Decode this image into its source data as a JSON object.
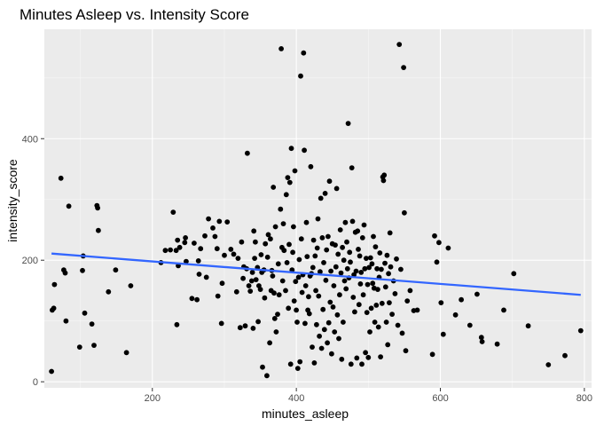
{
  "chart_data": {
    "type": "scatter",
    "title": "Minutes Asleep vs. Intensity Score",
    "xlabel": "minutes_asleep",
    "ylabel": "intensity_score",
    "xlim": [
      50,
      810
    ],
    "ylim": [
      -10,
      580
    ],
    "x_ticks": [
      200,
      400,
      600,
      800
    ],
    "y_ticks": [
      0,
      200,
      400
    ],
    "x_tick_labels": [
      "200",
      "400",
      "600",
      "800"
    ],
    "y_tick_labels": [
      "0",
      "200",
      "400"
    ],
    "grid": true,
    "legend": "none",
    "colors": {
      "panel": "#ebebeb",
      "grid_major": "#ffffff",
      "point": "#000000",
      "trend": "#3366ff"
    },
    "trend_line": {
      "x": [
        60,
        795
      ],
      "y": [
        211,
        143
      ]
    },
    "points": [
      [
        60,
        17
      ],
      [
        61,
        118
      ],
      [
        63,
        121
      ],
      [
        64,
        160
      ],
      [
        73,
        335
      ],
      [
        77,
        184
      ],
      [
        79,
        179
      ],
      [
        80,
        100
      ],
      [
        84,
        289
      ],
      [
        99,
        57
      ],
      [
        103,
        183
      ],
      [
        104,
        207
      ],
      [
        106,
        113
      ],
      [
        116,
        95
      ],
      [
        119,
        60
      ],
      [
        123,
        290
      ],
      [
        124,
        286
      ],
      [
        125,
        249
      ],
      [
        139,
        148
      ],
      [
        149,
        184
      ],
      [
        164,
        48
      ],
      [
        170,
        158
      ],
      [
        212,
        196
      ],
      [
        218,
        216
      ],
      [
        225,
        217
      ],
      [
        229,
        279
      ],
      [
        233,
        216
      ],
      [
        234,
        94
      ],
      [
        235,
        233
      ],
      [
        236,
        191
      ],
      [
        238,
        221
      ],
      [
        245,
        229
      ],
      [
        246,
        237
      ],
      [
        247,
        198
      ],
      [
        255,
        137
      ],
      [
        258,
        228
      ],
      [
        262,
        135
      ],
      [
        264,
        199
      ],
      [
        265,
        177
      ],
      [
        267,
        219
      ],
      [
        273,
        240
      ],
      [
        275,
        172
      ],
      [
        278,
        268
      ],
      [
        284,
        253
      ],
      [
        287,
        239
      ],
      [
        290,
        219
      ],
      [
        291,
        141
      ],
      [
        293,
        264
      ],
      [
        296,
        96
      ],
      [
        297,
        162
      ],
      [
        300,
        208
      ],
      [
        304,
        263
      ],
      [
        309,
        218
      ],
      [
        313,
        210
      ],
      [
        317,
        148
      ],
      [
        319,
        203
      ],
      [
        322,
        89
      ],
      [
        324,
        230
      ],
      [
        326,
        170
      ],
      [
        327,
        189
      ],
      [
        329,
        92
      ],
      [
        331,
        186
      ],
      [
        332,
        376
      ],
      [
        334,
        158
      ],
      [
        336,
        149
      ],
      [
        338,
        166
      ],
      [
        339,
        180
      ],
      [
        340,
        88
      ],
      [
        341,
        248
      ],
      [
        342,
        203
      ],
      [
        343,
        230
      ],
      [
        344,
        168
      ],
      [
        346,
        188
      ],
      [
        347,
        99
      ],
      [
        348,
        158
      ],
      [
        350,
        152
      ],
      [
        351,
        209
      ],
      [
        352,
        180
      ],
      [
        353,
        24
      ],
      [
        355,
        184
      ],
      [
        356,
        138
      ],
      [
        357,
        227
      ],
      [
        359,
        10
      ],
      [
        360,
        205
      ],
      [
        361,
        242
      ],
      [
        363,
        64
      ],
      [
        364,
        235
      ],
      [
        365,
        150
      ],
      [
        366,
        183
      ],
      [
        367,
        174
      ],
      [
        368,
        320
      ],
      [
        369,
        146
      ],
      [
        370,
        104
      ],
      [
        371,
        255
      ],
      [
        372,
        82
      ],
      [
        374,
        111
      ],
      [
        375,
        194
      ],
      [
        376,
        143
      ],
      [
        378,
        284
      ],
      [
        379,
        548
      ],
      [
        380,
        221
      ],
      [
        381,
        166
      ],
      [
        382,
        260
      ],
      [
        383,
        216
      ],
      [
        385,
        150
      ],
      [
        386,
        308
      ],
      [
        387,
        196
      ],
      [
        388,
        336
      ],
      [
        389,
        121
      ],
      [
        390,
        226
      ],
      [
        391,
        328
      ],
      [
        392,
        29
      ],
      [
        393,
        384
      ],
      [
        394,
        184
      ],
      [
        395,
        213
      ],
      [
        396,
        255
      ],
      [
        397,
        133
      ],
      [
        398,
        347
      ],
      [
        399,
        165
      ],
      [
        400,
        118
      ],
      [
        401,
        98
      ],
      [
        402,
        22
      ],
      [
        403,
        172
      ],
      [
        404,
        201
      ],
      [
        405,
        33
      ],
      [
        406,
        503
      ],
      [
        407,
        235
      ],
      [
        408,
        147
      ],
      [
        409,
        176
      ],
      [
        410,
        541
      ],
      [
        411,
        381
      ],
      [
        412,
        96
      ],
      [
        413,
        158
      ],
      [
        414,
        262
      ],
      [
        415,
        206
      ],
      [
        416,
        118
      ],
      [
        417,
        140
      ],
      [
        418,
        112
      ],
      [
        419,
        174
      ],
      [
        420,
        354
      ],
      [
        421,
        178
      ],
      [
        422,
        57
      ],
      [
        423,
        188
      ],
      [
        424,
        233
      ],
      [
        425,
        31
      ],
      [
        426,
        207
      ],
      [
        427,
        150
      ],
      [
        428,
        94
      ],
      [
        429,
        220
      ],
      [
        430,
        268
      ],
      [
        431,
        141
      ],
      [
        432,
        75
      ],
      [
        433,
        181
      ],
      [
        434,
        302
      ],
      [
        435,
        55
      ],
      [
        436,
        237
      ],
      [
        437,
        119
      ],
      [
        438,
        196
      ],
      [
        439,
        86
      ],
      [
        440,
        310
      ],
      [
        441,
        167
      ],
      [
        442,
        217
      ],
      [
        443,
        64
      ],
      [
        444,
        239
      ],
      [
        445,
        97
      ],
      [
        446,
        330
      ],
      [
        447,
        131
      ],
      [
        448,
        182
      ],
      [
        449,
        46
      ],
      [
        450,
        227
      ],
      [
        451,
        123
      ],
      [
        452,
        158
      ],
      [
        453,
        82
      ],
      [
        454,
        225
      ],
      [
        455,
        189
      ],
      [
        456,
        318
      ],
      [
        457,
        110
      ],
      [
        458,
        210
      ],
      [
        459,
        71
      ],
      [
        460,
        143
      ],
      [
        461,
        250
      ],
      [
        462,
        179
      ],
      [
        463,
        37
      ],
      [
        464,
        221
      ],
      [
        465,
        98
      ],
      [
        466,
        200
      ],
      [
        467,
        166
      ],
      [
        468,
        262
      ],
      [
        469,
        153
      ],
      [
        470,
        230
      ],
      [
        471,
        186
      ],
      [
        472,
        425
      ],
      [
        473,
        171
      ],
      [
        474,
        213
      ],
      [
        475,
        197
      ],
      [
        476,
        29
      ],
      [
        477,
        352
      ],
      [
        478,
        264
      ],
      [
        479,
        139
      ],
      [
        480,
        176
      ],
      [
        481,
        115
      ],
      [
        482,
        246
      ],
      [
        483,
        182
      ],
      [
        484,
        39
      ],
      [
        485,
        248
      ],
      [
        486,
        218
      ],
      [
        487,
        127
      ],
      [
        488,
        207
      ],
      [
        489,
        161
      ],
      [
        490,
        180
      ],
      [
        491,
        29
      ],
      [
        492,
        237
      ],
      [
        493,
        143
      ],
      [
        494,
        258
      ],
      [
        495,
        186
      ],
      [
        496,
        48
      ],
      [
        497,
        203
      ],
      [
        498,
        114
      ],
      [
        499,
        160
      ],
      [
        500,
        40
      ],
      [
        501,
        188
      ],
      [
        502,
        82
      ],
      [
        503,
        204
      ],
      [
        504,
        121
      ],
      [
        505,
        194
      ],
      [
        506,
        162
      ],
      [
        507,
        239
      ],
      [
        508,
        154
      ],
      [
        509,
        98
      ],
      [
        510,
        222
      ],
      [
        511,
        126
      ],
      [
        512,
        186
      ],
      [
        513,
        152
      ],
      [
        514,
        90
      ],
      [
        515,
        172
      ],
      [
        516,
        212
      ],
      [
        517,
        41
      ],
      [
        518,
        185
      ],
      [
        519,
        129
      ],
      [
        520,
        337
      ],
      [
        521,
        331
      ],
      [
        522,
        340
      ],
      [
        523,
        195
      ],
      [
        524,
        156
      ],
      [
        525,
        98
      ],
      [
        526,
        208
      ],
      [
        527,
        61
      ],
      [
        528,
        178
      ],
      [
        529,
        130
      ],
      [
        530,
        245
      ],
      [
        531,
        189
      ],
      [
        533,
        111
      ],
      [
        535,
        166
      ],
      [
        537,
        145
      ],
      [
        539,
        202
      ],
      [
        541,
        93
      ],
      [
        543,
        555
      ],
      [
        545,
        185
      ],
      [
        547,
        80
      ],
      [
        549,
        517
      ],
      [
        550,
        278
      ],
      [
        552,
        51
      ],
      [
        554,
        133
      ],
      [
        558,
        150
      ],
      [
        563,
        117
      ],
      [
        568,
        118
      ],
      [
        589,
        45
      ],
      [
        592,
        240
      ],
      [
        595,
        197
      ],
      [
        598,
        229
      ],
      [
        601,
        130
      ],
      [
        604,
        78
      ],
      [
        611,
        220
      ],
      [
        621,
        110
      ],
      [
        629,
        135
      ],
      [
        641,
        93
      ],
      [
        651,
        144
      ],
      [
        657,
        73
      ],
      [
        658,
        66
      ],
      [
        679,
        62
      ],
      [
        688,
        118
      ],
      [
        702,
        178
      ],
      [
        722,
        92
      ],
      [
        750,
        28
      ],
      [
        773,
        43
      ],
      [
        795,
        84
      ]
    ]
  }
}
